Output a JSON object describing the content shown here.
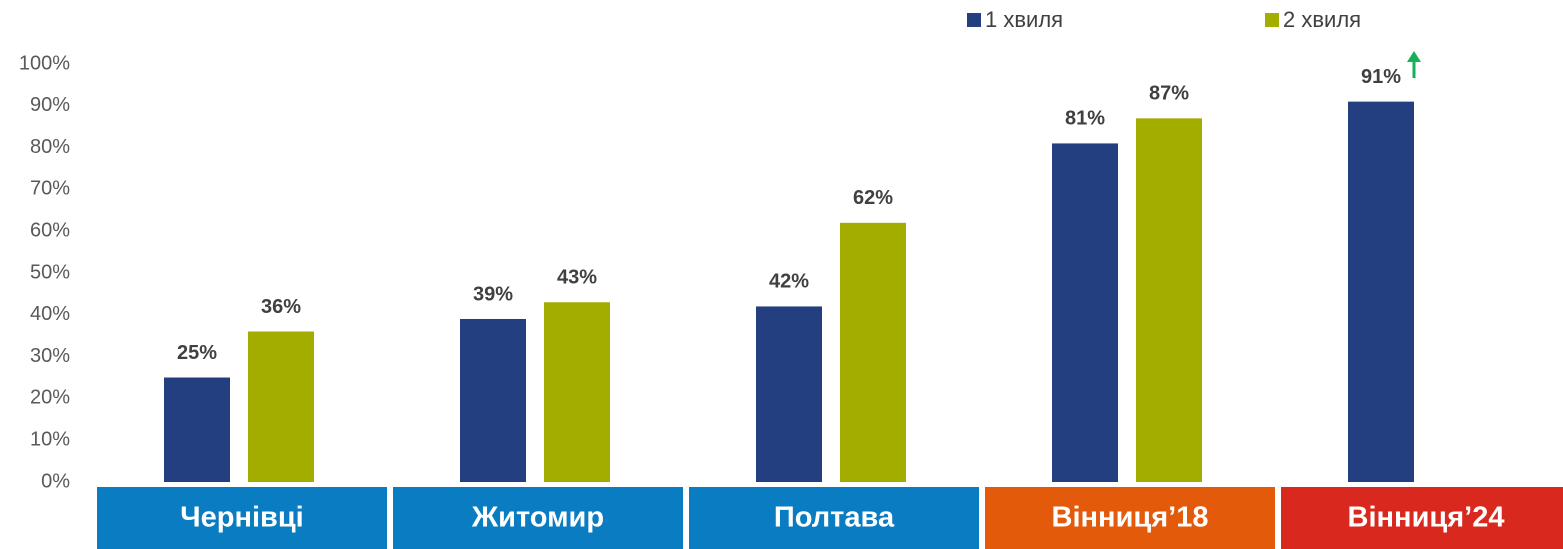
{
  "chart_data": {
    "type": "bar",
    "categories": [
      "Чернівці",
      "Житомир",
      "Полтава",
      "Вінниця’18",
      "Вінниця’24"
    ],
    "category_colors": [
      "#0a7dc2",
      "#0a7dc2",
      "#0a7dc2",
      "#e35a0b",
      "#d9291f"
    ],
    "series": [
      {
        "name": "1 хвиля",
        "color": "#243f7f",
        "values": [
          25,
          39,
          42,
          81,
          91
        ],
        "value_labels": [
          "25%",
          "39%",
          "42%",
          "81%",
          "91%"
        ]
      },
      {
        "name": "2 хвиля",
        "color": "#a3ad00",
        "values": [
          36,
          43,
          62,
          87,
          null
        ],
        "value_labels": [
          "36%",
          "43%",
          "62%",
          "87%",
          null
        ]
      }
    ],
    "ylim": [
      0,
      100
    ],
    "yticks": [
      {
        "value": 0,
        "label": "0%"
      },
      {
        "value": 10,
        "label": "10%"
      },
      {
        "value": 20,
        "label": "20%"
      },
      {
        "value": 30,
        "label": "30%"
      },
      {
        "value": 40,
        "label": "40%"
      },
      {
        "value": 50,
        "label": "50%"
      },
      {
        "value": 60,
        "label": "60%"
      },
      {
        "value": 70,
        "label": "70%"
      },
      {
        "value": 80,
        "label": "80%"
      },
      {
        "value": 90,
        "label": "90%"
      },
      {
        "value": 100,
        "label": "100%"
      }
    ],
    "grid": false,
    "legend": "top-right"
  }
}
